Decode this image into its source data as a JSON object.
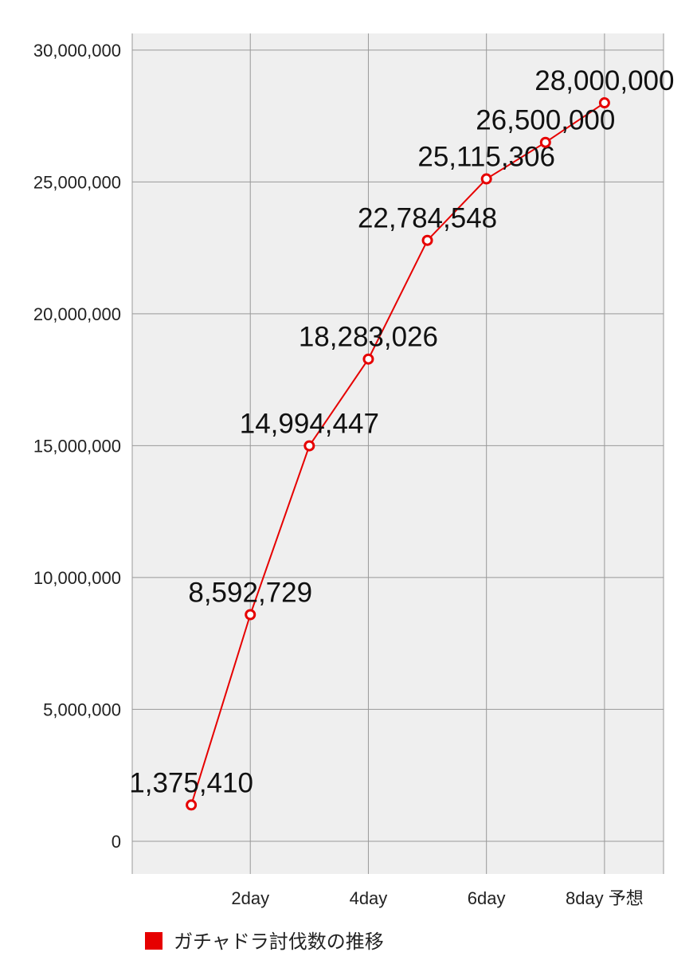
{
  "chart_data": {
    "type": "line",
    "categories": [
      null,
      "2day",
      null,
      "4day",
      null,
      "6day",
      null,
      "8day 予想"
    ],
    "series": [
      {
        "name": "ガチャドラ討伐数の推移",
        "color": "#e60000",
        "values": [
          1375410,
          8592729,
          14994447,
          18283026,
          22784548,
          25115306,
          26500000,
          28000000
        ],
        "value_labels": [
          "1,375,410",
          "8,592,729",
          "14,994,447",
          "18,283,026",
          "22,784,548",
          "25,115,306",
          "26,500,000",
          "28,000,000"
        ]
      }
    ],
    "ylim": [
      -1240000,
      30630000
    ],
    "yticks": [
      0,
      {
        "value": 5000000,
        "label": "5,000,000"
      },
      {
        "value": 10000000,
        "label": "10,000,000"
      },
      {
        "value": 15000000,
        "label": "15,000,000"
      },
      {
        "value": 20000000,
        "label": "20,000,000"
      },
      {
        "value": 25000000,
        "label": "25,000,000"
      },
      {
        "value": 30000000,
        "label": "30,000,000"
      }
    ],
    "grid": true,
    "legend": "bottom"
  }
}
